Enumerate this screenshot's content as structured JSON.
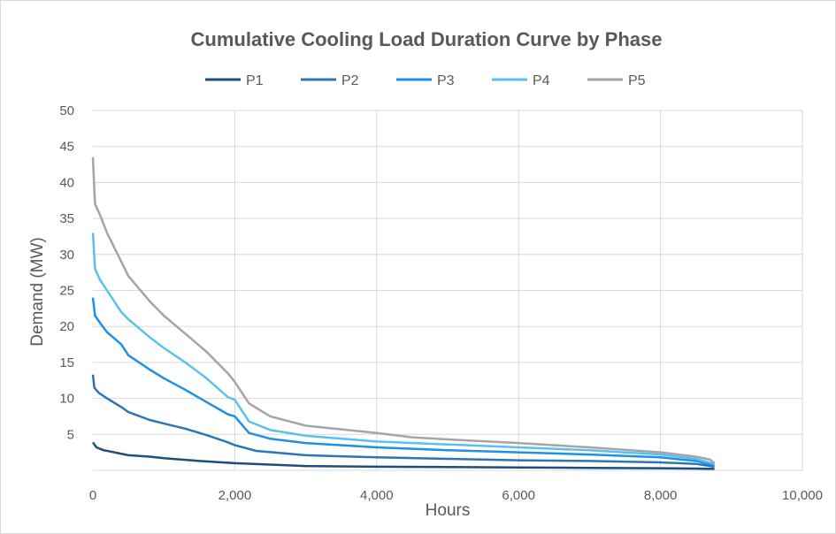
{
  "chart_data": {
    "type": "line",
    "title": "Cumulative Cooling Load Duration Curve by Phase",
    "xlabel": "Hours",
    "ylabel": "Demand (MW)",
    "xlim": [
      0,
      10000
    ],
    "ylim": [
      0,
      50
    ],
    "x_ticks": [
      "0",
      "2,000",
      "4,000",
      "6,000",
      "8,000",
      "10,000"
    ],
    "y_ticks": [
      "5",
      "10",
      "15",
      "20",
      "25",
      "30",
      "35",
      "40",
      "45",
      "50"
    ],
    "grid": true,
    "legend_position": "top",
    "series": [
      {
        "name": "P1",
        "color": "#1f4e79",
        "points": [
          [
            0,
            3.9
          ],
          [
            50,
            3.2
          ],
          [
            150,
            2.8
          ],
          [
            300,
            2.5
          ],
          [
            500,
            2.1
          ],
          [
            800,
            1.9
          ],
          [
            1000,
            1.7
          ],
          [
            1500,
            1.3
          ],
          [
            2000,
            1.0
          ],
          [
            3000,
            0.6
          ],
          [
            4000,
            0.5
          ],
          [
            5000,
            0.45
          ],
          [
            6000,
            0.4
          ],
          [
            7000,
            0.35
          ],
          [
            8000,
            0.3
          ],
          [
            8500,
            0.25
          ],
          [
            8760,
            0.2
          ]
        ]
      },
      {
        "name": "P2",
        "color": "#2e75b6",
        "points": [
          [
            0,
            13.3
          ],
          [
            20,
            11.5
          ],
          [
            80,
            10.8
          ],
          [
            200,
            10.0
          ],
          [
            400,
            8.8
          ],
          [
            500,
            8.1
          ],
          [
            800,
            7.0
          ],
          [
            1000,
            6.5
          ],
          [
            1300,
            5.8
          ],
          [
            1600,
            4.9
          ],
          [
            1900,
            3.9
          ],
          [
            2000,
            3.5
          ],
          [
            2300,
            2.7
          ],
          [
            3000,
            2.1
          ],
          [
            4000,
            1.8
          ],
          [
            5000,
            1.6
          ],
          [
            6000,
            1.4
          ],
          [
            7000,
            1.3
          ],
          [
            8000,
            1.1
          ],
          [
            8500,
            0.9
          ],
          [
            8760,
            0.5
          ]
        ]
      },
      {
        "name": "P3",
        "color": "#1e90e6",
        "points": [
          [
            0,
            24.0
          ],
          [
            30,
            21.5
          ],
          [
            100,
            20.5
          ],
          [
            200,
            19.2
          ],
          [
            400,
            17.5
          ],
          [
            500,
            16.0
          ],
          [
            800,
            14.0
          ],
          [
            1000,
            12.8
          ],
          [
            1300,
            11.2
          ],
          [
            1600,
            9.5
          ],
          [
            1900,
            7.8
          ],
          [
            2000,
            7.5
          ],
          [
            2200,
            5.2
          ],
          [
            2500,
            4.4
          ],
          [
            3000,
            3.8
          ],
          [
            4000,
            3.2
          ],
          [
            5000,
            2.8
          ],
          [
            6000,
            2.5
          ],
          [
            7000,
            2.2
          ],
          [
            8000,
            1.8
          ],
          [
            8500,
            1.3
          ],
          [
            8760,
            0.7
          ]
        ]
      },
      {
        "name": "P4",
        "color": "#5bc0f0",
        "points": [
          [
            0,
            33.0
          ],
          [
            30,
            28.0
          ],
          [
            100,
            26.5
          ],
          [
            200,
            25.0
          ],
          [
            400,
            22.0
          ],
          [
            500,
            21.0
          ],
          [
            800,
            18.5
          ],
          [
            1000,
            17.0
          ],
          [
            1300,
            15.0
          ],
          [
            1600,
            12.8
          ],
          [
            1900,
            10.2
          ],
          [
            2000,
            9.8
          ],
          [
            2200,
            6.8
          ],
          [
            2500,
            5.6
          ],
          [
            3000,
            4.8
          ],
          [
            4000,
            4.0
          ],
          [
            5000,
            3.6
          ],
          [
            6000,
            3.2
          ],
          [
            7000,
            2.8
          ],
          [
            8000,
            2.2
          ],
          [
            8500,
            1.6
          ],
          [
            8760,
            0.9
          ]
        ]
      },
      {
        "name": "P5",
        "color": "#a5a5a5",
        "points": [
          [
            0,
            43.5
          ],
          [
            30,
            37.0
          ],
          [
            100,
            35.5
          ],
          [
            200,
            33.0
          ],
          [
            400,
            29.0
          ],
          [
            500,
            27.0
          ],
          [
            800,
            23.5
          ],
          [
            1000,
            21.5
          ],
          [
            1300,
            19.0
          ],
          [
            1600,
            16.5
          ],
          [
            1900,
            13.5
          ],
          [
            2000,
            12.3
          ],
          [
            2200,
            9.3
          ],
          [
            2500,
            7.5
          ],
          [
            3000,
            6.2
          ],
          [
            4000,
            5.2
          ],
          [
            4500,
            4.6
          ],
          [
            5000,
            4.3
          ],
          [
            6000,
            3.8
          ],
          [
            7000,
            3.2
          ],
          [
            8000,
            2.5
          ],
          [
            8500,
            1.9
          ],
          [
            8700,
            1.5
          ],
          [
            8760,
            1.0
          ]
        ]
      }
    ]
  }
}
